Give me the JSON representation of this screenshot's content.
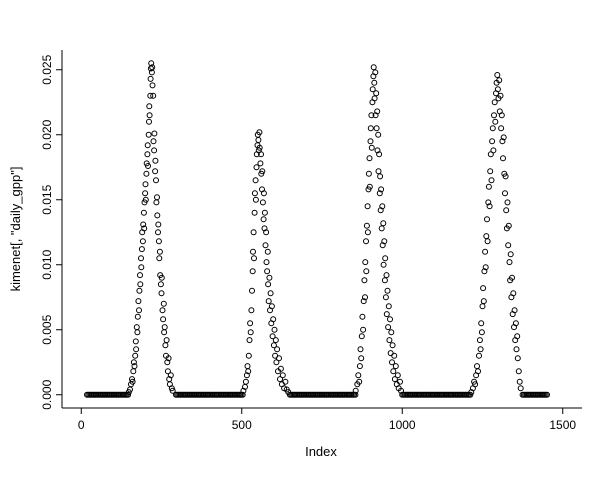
{
  "chart_data": {
    "type": "scatter",
    "title": "",
    "xlabel": "Index",
    "ylabel": "kimenet[, \"daily_gpp\"]",
    "xlim": [
      0,
      1500
    ],
    "ylim": [
      0,
      0.0255
    ],
    "grid": false,
    "legend": "none",
    "axis_style": "L",
    "marker": {
      "shape": "open-circle",
      "radius": 2.5,
      "color": "#000000"
    },
    "x_ticks": {
      "values": [
        0,
        500,
        1000,
        1500
      ],
      "labels": [
        "0",
        "500",
        "1000",
        "1500"
      ]
    },
    "y_ticks": {
      "values": [
        0,
        0.005,
        0.01,
        0.015,
        0.02,
        0.025
      ],
      "labels": [
        "0.000",
        "0.005",
        "0.010",
        "0.015",
        "0.020",
        "0.025"
      ]
    },
    "zero_run_step": 4,
    "zero_run_value": 0,
    "zero_runs": [
      {
        "start": 18,
        "end": 148
      },
      {
        "start": 295,
        "end": 505
      },
      {
        "start": 650,
        "end": 855
      },
      {
        "start": 1000,
        "end": 1212
      },
      {
        "start": 1375,
        "end": 1452
      }
    ],
    "points": [
      [
        148,
        0.0002
      ],
      [
        152,
        0.0004
      ],
      [
        155,
        0.0008
      ],
      [
        158,
        0.0012
      ],
      [
        160,
        0.001
      ],
      [
        162,
        0.0018
      ],
      [
        164,
        0.0025
      ],
      [
        166,
        0.0022
      ],
      [
        168,
        0.003
      ],
      [
        170,
        0.0041
      ],
      [
        171,
        0.0035
      ],
      [
        173,
        0.0052
      ],
      [
        175,
        0.0048
      ],
      [
        176,
        0.006
      ],
      [
        178,
        0.0072
      ],
      [
        180,
        0.0065
      ],
      [
        181,
        0.008
      ],
      [
        183,
        0.0092
      ],
      [
        184,
        0.0085
      ],
      [
        186,
        0.0105
      ],
      [
        187,
        0.0098
      ],
      [
        189,
        0.0112
      ],
      [
        190,
        0.0125
      ],
      [
        192,
        0.0118
      ],
      [
        193,
        0.0131
      ],
      [
        195,
        0.014
      ],
      [
        196,
        0.0128
      ],
      [
        197,
        0.0148
      ],
      [
        199,
        0.0155
      ],
      [
        200,
        0.0162
      ],
      [
        201,
        0.015
      ],
      [
        203,
        0.017
      ],
      [
        204,
        0.0178
      ],
      [
        206,
        0.0185
      ],
      [
        207,
        0.0192
      ],
      [
        208,
        0.0176
      ],
      [
        210,
        0.02
      ],
      [
        211,
        0.021
      ],
      [
        212,
        0.0222
      ],
      [
        213,
        0.0215
      ],
      [
        215,
        0.023
      ],
      [
        216,
        0.0243
      ],
      [
        217,
        0.0251
      ],
      [
        218,
        0.0255
      ],
      [
        220,
        0.0248
      ],
      [
        221,
        0.0252
      ],
      [
        222,
        0.0238
      ],
      [
        224,
        0.023
      ],
      [
        225,
        0.0195
      ],
      [
        227,
        0.0188
      ],
      [
        228,
        0.0201
      ],
      [
        230,
        0.0172
      ],
      [
        231,
        0.018
      ],
      [
        233,
        0.0165
      ],
      [
        234,
        0.0148
      ],
      [
        236,
        0.0152
      ],
      [
        237,
        0.0138
      ],
      [
        239,
        0.0125
      ],
      [
        240,
        0.0131
      ],
      [
        242,
        0.0118
      ],
      [
        243,
        0.0105
      ],
      [
        245,
        0.011
      ],
      [
        246,
        0.0092
      ],
      [
        248,
        0.0085
      ],
      [
        250,
        0.0078
      ],
      [
        251,
        0.009
      ],
      [
        253,
        0.0065
      ],
      [
        255,
        0.0058
      ],
      [
        257,
        0.007
      ],
      [
        258,
        0.0048
      ],
      [
        260,
        0.0052
      ],
      [
        262,
        0.0038
      ],
      [
        264,
        0.003
      ],
      [
        266,
        0.0042
      ],
      [
        268,
        0.0025
      ],
      [
        270,
        0.0018
      ],
      [
        272,
        0.0028
      ],
      [
        274,
        0.0012
      ],
      [
        276,
        0.0008
      ],
      [
        279,
        0.0015
      ],
      [
        282,
        0.0005
      ],
      [
        285,
        0.0003
      ],
      [
        505,
        0.0003
      ],
      [
        510,
        0.0006
      ],
      [
        513,
        0.001
      ],
      [
        516,
        0.0015
      ],
      [
        518,
        0.0022
      ],
      [
        520,
        0.0018
      ],
      [
        522,
        0.003
      ],
      [
        524,
        0.0042
      ],
      [
        526,
        0.0055
      ],
      [
        528,
        0.0048
      ],
      [
        530,
        0.0065
      ],
      [
        532,
        0.008
      ],
      [
        534,
        0.0095
      ],
      [
        535,
        0.011
      ],
      [
        537,
        0.0125
      ],
      [
        538,
        0.0105
      ],
      [
        540,
        0.014
      ],
      [
        541,
        0.0155
      ],
      [
        543,
        0.0165
      ],
      [
        544,
        0.015
      ],
      [
        546,
        0.0175
      ],
      [
        547,
        0.0185
      ],
      [
        549,
        0.0192
      ],
      [
        550,
        0.02
      ],
      [
        552,
        0.0196
      ],
      [
        553,
        0.0188
      ],
      [
        555,
        0.0202
      ],
      [
        556,
        0.019
      ],
      [
        558,
        0.0178
      ],
      [
        560,
        0.0185
      ],
      [
        561,
        0.017
      ],
      [
        563,
        0.0158
      ],
      [
        564,
        0.0172
      ],
      [
        566,
        0.0148
      ],
      [
        568,
        0.0135
      ],
      [
        569,
        0.0155
      ],
      [
        571,
        0.0128
      ],
      [
        572,
        0.014
      ],
      [
        574,
        0.0115
      ],
      [
        576,
        0.0125
      ],
      [
        577,
        0.0102
      ],
      [
        579,
        0.0095
      ],
      [
        581,
        0.011
      ],
      [
        582,
        0.0085
      ],
      [
        584,
        0.0072
      ],
      [
        586,
        0.009
      ],
      [
        588,
        0.0065
      ],
      [
        590,
        0.0078
      ],
      [
        592,
        0.0055
      ],
      [
        594,
        0.0068
      ],
      [
        596,
        0.0045
      ],
      [
        598,
        0.0058
      ],
      [
        600,
        0.0038
      ],
      [
        602,
        0.005
      ],
      [
        604,
        0.003
      ],
      [
        606,
        0.0042
      ],
      [
        608,
        0.0025
      ],
      [
        610,
        0.0035
      ],
      [
        613,
        0.0018
      ],
      [
        616,
        0.0028
      ],
      [
        619,
        0.0012
      ],
      [
        622,
        0.002
      ],
      [
        625,
        0.0008
      ],
      [
        628,
        0.0015
      ],
      [
        632,
        0.0005
      ],
      [
        636,
        0.001
      ],
      [
        640,
        0.0004
      ],
      [
        645,
        0.0002
      ],
      [
        855,
        0.0003
      ],
      [
        860,
        0.0008
      ],
      [
        863,
        0.0015
      ],
      [
        866,
        0.001
      ],
      [
        868,
        0.0022
      ],
      [
        870,
        0.0035
      ],
      [
        872,
        0.0028
      ],
      [
        874,
        0.0045
      ],
      [
        876,
        0.006
      ],
      [
        878,
        0.005
      ],
      [
        880,
        0.0072
      ],
      [
        882,
        0.0088
      ],
      [
        884,
        0.0075
      ],
      [
        885,
        0.0102
      ],
      [
        887,
        0.0118
      ],
      [
        888,
        0.0095
      ],
      [
        890,
        0.013
      ],
      [
        892,
        0.0145
      ],
      [
        893,
        0.0125
      ],
      [
        895,
        0.0158
      ],
      [
        896,
        0.017
      ],
      [
        898,
        0.0182
      ],
      [
        899,
        0.016
      ],
      [
        901,
        0.0195
      ],
      [
        902,
        0.0205
      ],
      [
        904,
        0.0215
      ],
      [
        905,
        0.019
      ],
      [
        907,
        0.0225
      ],
      [
        908,
        0.0235
      ],
      [
        910,
        0.0245
      ],
      [
        911,
        0.0252
      ],
      [
        913,
        0.024
      ],
      [
        914,
        0.0228
      ],
      [
        916,
        0.0248
      ],
      [
        917,
        0.0215
      ],
      [
        919,
        0.0232
      ],
      [
        920,
        0.0205
      ],
      [
        922,
        0.0218
      ],
      [
        923,
        0.0188
      ],
      [
        925,
        0.02
      ],
      [
        926,
        0.0172
      ],
      [
        928,
        0.0185
      ],
      [
        930,
        0.0155
      ],
      [
        931,
        0.0168
      ],
      [
        933,
        0.0142
      ],
      [
        934,
        0.0158
      ],
      [
        936,
        0.0128
      ],
      [
        938,
        0.0145
      ],
      [
        939,
        0.0115
      ],
      [
        941,
        0.0132
      ],
      [
        942,
        0.01
      ],
      [
        944,
        0.0118
      ],
      [
        946,
        0.0088
      ],
      [
        947,
        0.0105
      ],
      [
        949,
        0.0075
      ],
      [
        951,
        0.0092
      ],
      [
        952,
        0.0062
      ],
      [
        954,
        0.008
      ],
      [
        956,
        0.0052
      ],
      [
        958,
        0.0068
      ],
      [
        960,
        0.0042
      ],
      [
        962,
        0.0058
      ],
      [
        964,
        0.0032
      ],
      [
        966,
        0.0048
      ],
      [
        968,
        0.0025
      ],
      [
        970,
        0.0038
      ],
      [
        972,
        0.0018
      ],
      [
        975,
        0.003
      ],
      [
        977,
        0.0012
      ],
      [
        980,
        0.0022
      ],
      [
        983,
        0.0008
      ],
      [
        986,
        0.0015
      ],
      [
        989,
        0.0005
      ],
      [
        993,
        0.001
      ],
      [
        996,
        0.0003
      ],
      [
        1215,
        0.0002
      ],
      [
        1220,
        0.0005
      ],
      [
        1224,
        0.001
      ],
      [
        1227,
        0.0008
      ],
      [
        1230,
        0.0015
      ],
      [
        1233,
        0.0022
      ],
      [
        1236,
        0.0018
      ],
      [
        1239,
        0.003
      ],
      [
        1242,
        0.0042
      ],
      [
        1244,
        0.0035
      ],
      [
        1246,
        0.0055
      ],
      [
        1248,
        0.0048
      ],
      [
        1250,
        0.0068
      ],
      [
        1252,
        0.0082
      ],
      [
        1254,
        0.0072
      ],
      [
        1256,
        0.0095
      ],
      [
        1258,
        0.011
      ],
      [
        1260,
        0.0098
      ],
      [
        1262,
        0.0122
      ],
      [
        1264,
        0.0135
      ],
      [
        1266,
        0.0118
      ],
      [
        1268,
        0.0148
      ],
      [
        1270,
        0.016
      ],
      [
        1272,
        0.0145
      ],
      [
        1274,
        0.0172
      ],
      [
        1276,
        0.0185
      ],
      [
        1278,
        0.0165
      ],
      [
        1280,
        0.0195
      ],
      [
        1282,
        0.0205
      ],
      [
        1284,
        0.0188
      ],
      [
        1286,
        0.0215
      ],
      [
        1288,
        0.0225
      ],
      [
        1290,
        0.021
      ],
      [
        1292,
        0.0232
      ],
      [
        1294,
        0.024
      ],
      [
        1296,
        0.0246
      ],
      [
        1298,
        0.0235
      ],
      [
        1300,
        0.0228
      ],
      [
        1302,
        0.0242
      ],
      [
        1304,
        0.0218
      ],
      [
        1306,
        0.023
      ],
      [
        1308,
        0.0205
      ],
      [
        1310,
        0.0215
      ],
      [
        1312,
        0.0195
      ],
      [
        1314,
        0.0182
      ],
      [
        1316,
        0.0198
      ],
      [
        1318,
        0.017
      ],
      [
        1320,
        0.0155
      ],
      [
        1322,
        0.0168
      ],
      [
        1324,
        0.0142
      ],
      [
        1326,
        0.0128
      ],
      [
        1328,
        0.0148
      ],
      [
        1330,
        0.0115
      ],
      [
        1332,
        0.013
      ],
      [
        1334,
        0.0102
      ],
      [
        1336,
        0.0088
      ],
      [
        1338,
        0.0108
      ],
      [
        1340,
        0.0075
      ],
      [
        1342,
        0.009
      ],
      [
        1344,
        0.0062
      ],
      [
        1346,
        0.0078
      ],
      [
        1348,
        0.0052
      ],
      [
        1350,
        0.0065
      ],
      [
        1352,
        0.0042
      ],
      [
        1354,
        0.0055
      ],
      [
        1356,
        0.0035
      ],
      [
        1358,
        0.0045
      ],
      [
        1360,
        0.0028
      ],
      [
        1363,
        0.0018
      ],
      [
        1366,
        0.001
      ],
      [
        1369,
        0.0005
      ]
    ]
  }
}
